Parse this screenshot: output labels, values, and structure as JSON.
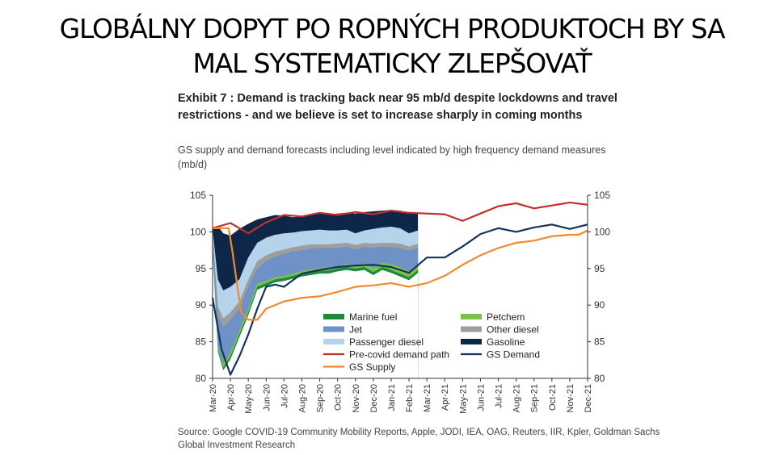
{
  "slide": {
    "title_line1": "GLOBÁLNY DOPYT PO ROPNÝCH PRODUKTOCH BY SA",
    "title_line2": "MAL SYSTEMATICKY ZLEPŠOVAŤ"
  },
  "chart_data": {
    "type": "area",
    "title": "Exhibit 7 : Demand is tracking back near 95 mb/d despite lockdowns and travel restrictions - and we believe is set to increase sharply in coming months",
    "subtitle": "GS supply and demand forecasts including level indicated by high frequency demand measures (mb/d)",
    "source": "Source: Google COVID-19 Community Mobility Reports, Apple, JODI, IEA, OAG, Reuters, IIR, Kpler, Goldman Sachs Global Investment Research",
    "ylim": [
      80,
      105
    ],
    "yticks": [
      80,
      85,
      90,
      95,
      100,
      105
    ],
    "x": [
      0,
      0.5,
      1,
      1.5,
      2,
      2.5,
      3,
      3.5,
      4,
      4.5,
      5,
      5.5,
      6,
      6.5,
      7,
      7.5,
      8,
      8.5,
      9,
      9.5,
      10,
      10.5,
      11,
      11.5,
      12,
      13,
      14,
      15,
      16,
      17,
      18,
      19,
      20,
      21
    ],
    "xticks": [
      "Mar-20",
      "Apr-20",
      "May-20",
      "Jun-20",
      "Jul-20",
      "Aug-20",
      "Sep-20",
      "Oct-20",
      "Nov-20",
      "Dec-20",
      "Jan-21",
      "Feb-21",
      "Mar-21",
      "Apr-21",
      "May-21",
      "Jun-21",
      "Jul-21",
      "Aug-21",
      "Sep-21",
      "Oct-21",
      "Nov-21",
      "Dec-21"
    ],
    "legend": [
      {
        "name": "Marine fuel",
        "color": "#1e8a3e",
        "kind": "area"
      },
      {
        "name": "Petchem",
        "color": "#7cc24a",
        "kind": "area"
      },
      {
        "name": "Jet",
        "color": "#6f92c6",
        "kind": "area"
      },
      {
        "name": "Other diesel",
        "color": "#9e9e9e",
        "kind": "area"
      },
      {
        "name": "Passenger diesel",
        "color": "#b5d4ec",
        "kind": "area"
      },
      {
        "name": "Gasoline",
        "color": "#0e2749",
        "kind": "area"
      },
      {
        "name": "Pre-covid demand path",
        "color": "#c0302a",
        "kind": "line"
      },
      {
        "name": "GS Demand",
        "color": "#14345c",
        "kind": "line"
      },
      {
        "name": "GS Supply",
        "color": "#f08a2c",
        "kind": "line"
      }
    ],
    "stacked_areas": [
      {
        "name": "Marine fuel",
        "color": "#1e8a3e",
        "values": [
          98,
          84,
          81.5,
          83,
          86,
          89,
          92.5,
          93,
          93.5,
          93.7,
          94,
          94.3,
          94.5,
          94.7,
          94.7,
          95,
          95.2,
          95,
          95.2,
          94.5,
          95.2,
          94.8,
          94.3,
          93.8,
          94.8
        ]
      },
      {
        "name": "Petchem",
        "color": "#7cc24a",
        "values": [
          98,
          84.3,
          82,
          83.5,
          86.5,
          89.5,
          93,
          93.3,
          93.8,
          94,
          94.3,
          94.6,
          94.9,
          95.1,
          95.2,
          95.3,
          95.6,
          95.4,
          95.6,
          95.1,
          95.8,
          95.6,
          95.2,
          94.6,
          95.4
        ]
      },
      {
        "name": "Jet",
        "color": "#6f92c6",
        "values": [
          99.5,
          88.5,
          87,
          88,
          89.5,
          92.5,
          95,
          96,
          96.6,
          97,
          97.3,
          97.5,
          97.7,
          97.8,
          97.8,
          97.8,
          98,
          97.6,
          98,
          97.8,
          98,
          97.9,
          97.8,
          97.4,
          97.8
        ]
      },
      {
        "name": "Other diesel",
        "color": "#9e9e9e",
        "values": [
          99.8,
          89.8,
          88.2,
          89,
          90.5,
          93.5,
          96,
          96.8,
          97.3,
          97.6,
          97.9,
          98.1,
          98.3,
          98.3,
          98.3,
          98.4,
          98.5,
          98.2,
          98.5,
          98.4,
          98.5,
          98.5,
          98.4,
          98.0,
          98.4
        ]
      },
      {
        "name": "Passenger diesel",
        "color": "#b5d4ec",
        "values": [
          100.3,
          93.5,
          92,
          92.5,
          93.5,
          96.5,
          98.5,
          99.2,
          99.6,
          99.8,
          99.9,
          100.1,
          100.2,
          100.3,
          100.2,
          100.2,
          100.3,
          99.8,
          100.2,
          100.4,
          100.6,
          100.7,
          100.5,
          99.8,
          100.2
        ]
      },
      {
        "name": "Gasoline",
        "color": "#0e2749",
        "values": [
          100.5,
          100.8,
          99.8,
          99.5,
          100.4,
          101.1,
          101.7,
          102,
          102.3,
          102.2,
          102,
          102.1,
          102.4,
          102.5,
          102.4,
          102.5,
          102.6,
          102.5,
          102.7,
          102.8,
          102.9,
          103,
          102.9,
          102.6,
          102.5
        ]
      }
    ],
    "stacked_x": [
      0,
      0.3,
      0.6,
      1,
      1.5,
      2,
      2.5,
      3,
      3.5,
      4,
      4.5,
      5,
      5.5,
      6,
      6.5,
      7,
      7.5,
      8,
      8.5,
      9,
      9.5,
      10,
      10.5,
      11,
      11.5
    ],
    "lines": [
      {
        "name": "Pre-covid demand path",
        "color": "#c0302a",
        "x": [
          0,
          1,
          2,
          3,
          4,
          5,
          6,
          7,
          8,
          9,
          10,
          11,
          12,
          13,
          14,
          15,
          16,
          17,
          18,
          19,
          20,
          21
        ],
        "values": [
          100.5,
          101.2,
          99.8,
          101.3,
          102.3,
          102.1,
          102.6,
          102.3,
          102.7,
          102.4,
          102.9,
          102.6,
          102.5,
          102.4,
          101.5,
          102.5,
          103.5,
          103.9,
          103.2,
          103.6,
          104,
          103.7
        ]
      },
      {
        "name": "GS Demand",
        "color": "#14345c",
        "x": [
          0,
          0.5,
          1,
          1.5,
          2,
          2.5,
          3,
          3.5,
          4,
          5,
          6,
          7,
          8,
          9,
          10,
          11,
          12,
          13,
          14,
          15,
          16,
          17,
          18,
          19,
          20,
          21
        ],
        "values": [
          91,
          84,
          80.5,
          83,
          86,
          89.5,
          92.5,
          92.8,
          92.5,
          94.3,
          94.8,
          95.2,
          95.4,
          95.5,
          95.2,
          94.4,
          96.5,
          96.5,
          98,
          99.7,
          100.5,
          100,
          100.6,
          101,
          100.4,
          101
        ]
      },
      {
        "name": "GS Supply",
        "color": "#f08a2c",
        "x": [
          0,
          0.9,
          1.1,
          1.6,
          2,
          2.5,
          3,
          4,
          5,
          6,
          7,
          8,
          9,
          10,
          11,
          12,
          13,
          14,
          15,
          16,
          17,
          18,
          19,
          20,
          20.5,
          21
        ],
        "values": [
          100.5,
          100.5,
          97.5,
          89,
          88,
          88,
          89.5,
          90.5,
          91,
          91.2,
          91.8,
          92.5,
          92.7,
          93,
          92.5,
          93,
          94,
          95.5,
          96.8,
          97.8,
          98.5,
          98.8,
          99.4,
          99.6,
          99.6,
          100.2
        ]
      }
    ]
  }
}
